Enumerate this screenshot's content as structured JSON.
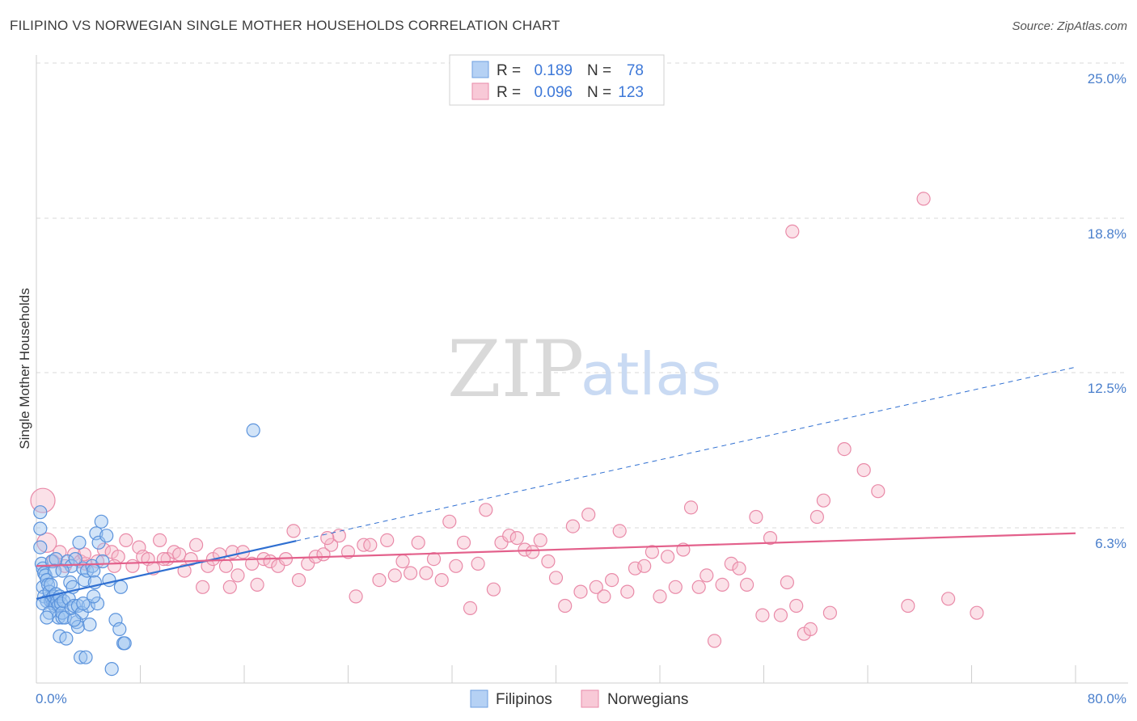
{
  "title": "FILIPINO VS NORWEGIAN SINGLE MOTHER HOUSEHOLDS CORRELATION CHART",
  "source": "Source: ZipAtlas.com",
  "watermark": {
    "zip": "ZIP",
    "atlas": "atlas"
  },
  "colors": {
    "blue_fill": "#9cc3f0",
    "blue_stroke": "#5b93dc",
    "blue_line": "#2f6fd1",
    "pink_fill": "#f6bccd",
    "pink_stroke": "#e98aa8",
    "pink_line": "#e3608b",
    "grid": "#d8d8d8",
    "tick": "#4a7fcc"
  },
  "legend": {
    "rows": [
      {
        "r_label": "R =",
        "r_value": "0.189",
        "n_label": "N =",
        "n_value": "78"
      },
      {
        "r_label": "R =",
        "r_value": "0.096",
        "n_label": "N =",
        "n_value": "123"
      }
    ]
  },
  "bottom_legend": [
    "Filipinos",
    "Norwegians"
  ],
  "chart_data": {
    "type": "scatter",
    "title": "FILIPINO VS NORWEGIAN SINGLE MOTHER HOUSEHOLDS CORRELATION CHART",
    "xlabel": "",
    "ylabel": "Single Mother Households",
    "xlim": [
      0,
      80
    ],
    "ylim": [
      0,
      26.5
    ],
    "x_tick_labels": [
      "0.0%",
      "80.0%"
    ],
    "y_ticks": [
      6.3,
      12.5,
      18.8,
      25.0
    ],
    "y_tick_labels": [
      "6.3%",
      "12.5%",
      "18.8%",
      "25.0%"
    ],
    "grid": true,
    "legend_position": "top-center",
    "series": [
      {
        "name": "Filipinos",
        "R": 0.189,
        "N": 78,
        "trend": {
          "x0": 0,
          "y0": 3.6,
          "x1": 80,
          "y1": 13.5,
          "solid_until_x": 20
        },
        "points": [
          [
            0.3,
            7.3
          ],
          [
            0.3,
            6.6
          ],
          [
            0.3,
            5.8
          ],
          [
            0.4,
            5.1
          ],
          [
            0.5,
            4.9
          ],
          [
            0.5,
            4.1
          ],
          [
            0.6,
            4.7
          ],
          [
            0.6,
            3.7
          ],
          [
            0.7,
            4.6
          ],
          [
            0.8,
            4.4
          ],
          [
            0.8,
            3.5
          ],
          [
            0.9,
            4.2
          ],
          [
            1.0,
            3.9
          ],
          [
            1.1,
            3.5
          ],
          [
            1.1,
            4.2
          ],
          [
            1.2,
            5.2
          ],
          [
            1.2,
            3.6
          ],
          [
            1.3,
            3.4
          ],
          [
            1.3,
            3.7
          ],
          [
            1.4,
            3.3
          ],
          [
            1.5,
            5.3
          ],
          [
            1.5,
            3.8
          ],
          [
            1.6,
            3.5
          ],
          [
            1.7,
            2.8
          ],
          [
            1.7,
            3.3
          ],
          [
            1.8,
            3.7
          ],
          [
            1.8,
            2.0
          ],
          [
            1.9,
            3.4
          ],
          [
            2.0,
            2.8
          ],
          [
            2.0,
            3.0
          ],
          [
            2.1,
            3.5
          ],
          [
            2.2,
            2.8
          ],
          [
            2.3,
            1.9
          ],
          [
            2.4,
            5.2
          ],
          [
            2.5,
            3.6
          ],
          [
            2.6,
            4.3
          ],
          [
            2.7,
            3.2
          ],
          [
            2.7,
            5.0
          ],
          [
            2.8,
            4.1
          ],
          [
            2.9,
            3.3
          ],
          [
            3.0,
            5.3
          ],
          [
            3.1,
            2.6
          ],
          [
            3.2,
            2.4
          ],
          [
            3.2,
            3.3
          ],
          [
            3.3,
            6.0
          ],
          [
            3.4,
            1.1
          ],
          [
            3.5,
            3.0
          ],
          [
            3.6,
            4.9
          ],
          [
            3.7,
            4.4
          ],
          [
            3.8,
            1.1
          ],
          [
            3.9,
            4.8
          ],
          [
            4.0,
            3.3
          ],
          [
            4.1,
            2.5
          ],
          [
            4.3,
            5.0
          ],
          [
            4.4,
            4.8
          ],
          [
            4.5,
            4.3
          ],
          [
            4.6,
            6.4
          ],
          [
            4.7,
            3.4
          ],
          [
            4.8,
            6.0
          ],
          [
            5.0,
            6.9
          ],
          [
            5.1,
            5.2
          ],
          [
            5.4,
            6.3
          ],
          [
            5.6,
            4.4
          ],
          [
            5.8,
            0.6
          ],
          [
            6.1,
            2.7
          ],
          [
            6.4,
            2.3
          ],
          [
            6.5,
            4.1
          ],
          [
            6.7,
            1.7
          ],
          [
            6.8,
            1.7
          ],
          [
            16.7,
            10.8
          ],
          [
            0.5,
            3.4
          ],
          [
            1.0,
            3.0
          ],
          [
            1.4,
            4.8
          ],
          [
            2.0,
            4.8
          ],
          [
            2.9,
            2.7
          ],
          [
            3.6,
            3.4
          ],
          [
            4.4,
            3.7
          ],
          [
            0.8,
            2.8
          ]
        ]
      },
      {
        "name": "Norwegians",
        "R": 0.096,
        "N": 123,
        "trend": {
          "x0": 0,
          "y0": 5.0,
          "x1": 80,
          "y1": 6.4
        },
        "points": [
          [
            0.5,
            7.8
          ],
          [
            0.8,
            6.0
          ],
          [
            1.3,
            5.2
          ],
          [
            1.8,
            5.6
          ],
          [
            2.2,
            5.0
          ],
          [
            2.9,
            5.5
          ],
          [
            3.4,
            5.2
          ],
          [
            3.8,
            5.1
          ],
          [
            4.7,
            5.2
          ],
          [
            5.2,
            5.7
          ],
          [
            5.8,
            5.6
          ],
          [
            6.3,
            5.4
          ],
          [
            6.9,
            6.1
          ],
          [
            7.4,
            5.0
          ],
          [
            7.9,
            5.8
          ],
          [
            8.2,
            5.4
          ],
          [
            8.6,
            5.3
          ],
          [
            9.0,
            4.9
          ],
          [
            9.5,
            6.1
          ],
          [
            10.1,
            5.3
          ],
          [
            10.6,
            5.6
          ],
          [
            11.0,
            5.5
          ],
          [
            11.4,
            4.8
          ],
          [
            11.9,
            5.3
          ],
          [
            12.3,
            5.9
          ],
          [
            12.8,
            4.1
          ],
          [
            13.2,
            5.0
          ],
          [
            13.6,
            5.3
          ],
          [
            14.1,
            5.5
          ],
          [
            14.6,
            5.0
          ],
          [
            15.1,
            5.6
          ],
          [
            15.5,
            4.6
          ],
          [
            15.9,
            5.6
          ],
          [
            16.6,
            5.1
          ],
          [
            17.0,
            4.2
          ],
          [
            17.5,
            5.3
          ],
          [
            18.0,
            5.2
          ],
          [
            18.6,
            5.0
          ],
          [
            19.2,
            5.3
          ],
          [
            19.8,
            6.5
          ],
          [
            20.2,
            4.4
          ],
          [
            20.9,
            5.1
          ],
          [
            21.5,
            5.4
          ],
          [
            22.1,
            5.5
          ],
          [
            22.7,
            5.9
          ],
          [
            23.3,
            6.3
          ],
          [
            24.0,
            5.6
          ],
          [
            24.6,
            3.7
          ],
          [
            25.2,
            5.9
          ],
          [
            25.7,
            5.9
          ],
          [
            26.4,
            4.4
          ],
          [
            27.0,
            6.1
          ],
          [
            27.6,
            4.6
          ],
          [
            28.2,
            5.2
          ],
          [
            28.8,
            4.7
          ],
          [
            29.4,
            6.0
          ],
          [
            30.0,
            4.7
          ],
          [
            30.6,
            5.3
          ],
          [
            31.2,
            4.4
          ],
          [
            31.8,
            6.9
          ],
          [
            32.3,
            5.0
          ],
          [
            32.9,
            6.0
          ],
          [
            33.4,
            3.2
          ],
          [
            34.0,
            5.1
          ],
          [
            34.6,
            7.4
          ],
          [
            35.2,
            4.0
          ],
          [
            35.8,
            6.0
          ],
          [
            36.4,
            6.3
          ],
          [
            37.0,
            6.2
          ],
          [
            37.6,
            5.7
          ],
          [
            38.2,
            5.6
          ],
          [
            38.8,
            6.1
          ],
          [
            39.4,
            5.2
          ],
          [
            40.0,
            4.5
          ],
          [
            40.7,
            3.3
          ],
          [
            41.3,
            6.7
          ],
          [
            41.9,
            3.9
          ],
          [
            42.5,
            7.2
          ],
          [
            43.1,
            4.1
          ],
          [
            43.7,
            3.7
          ],
          [
            44.3,
            4.4
          ],
          [
            44.9,
            6.5
          ],
          [
            45.5,
            3.9
          ],
          [
            46.1,
            4.9
          ],
          [
            46.8,
            5.0
          ],
          [
            47.4,
            5.6
          ],
          [
            48.0,
            3.7
          ],
          [
            48.6,
            5.4
          ],
          [
            49.2,
            4.1
          ],
          [
            49.8,
            5.7
          ],
          [
            50.4,
            7.5
          ],
          [
            51.0,
            4.1
          ],
          [
            51.6,
            4.6
          ],
          [
            52.2,
            1.8
          ],
          [
            52.8,
            4.2
          ],
          [
            53.5,
            5.1
          ],
          [
            54.1,
            4.9
          ],
          [
            54.7,
            4.2
          ],
          [
            55.4,
            7.1
          ],
          [
            55.9,
            2.9
          ],
          [
            56.5,
            6.2
          ],
          [
            57.3,
            2.9
          ],
          [
            57.8,
            4.3
          ],
          [
            58.2,
            19.3
          ],
          [
            58.5,
            3.3
          ],
          [
            59.1,
            2.1
          ],
          [
            59.6,
            2.3
          ],
          [
            60.1,
            7.1
          ],
          [
            60.6,
            7.8
          ],
          [
            61.1,
            3.0
          ],
          [
            62.2,
            10.0
          ],
          [
            63.7,
            9.1
          ],
          [
            64.8,
            8.2
          ],
          [
            67.1,
            3.3
          ],
          [
            68.3,
            20.7
          ],
          [
            70.2,
            3.6
          ],
          [
            72.4,
            3.0
          ],
          [
            3.7,
            5.5
          ],
          [
            6.0,
            5.0
          ],
          [
            9.8,
            5.3
          ],
          [
            14.9,
            4.1
          ],
          [
            22.4,
            6.2
          ]
        ]
      }
    ]
  }
}
